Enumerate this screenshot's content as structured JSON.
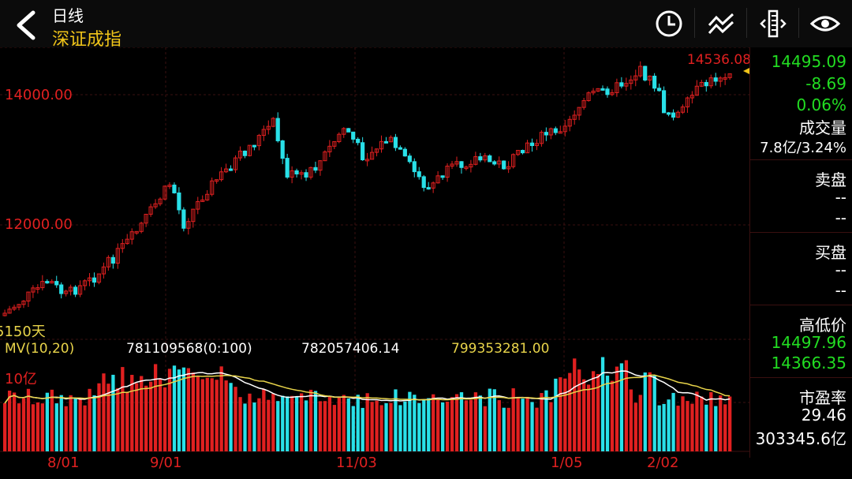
{
  "header": {
    "period": "日线",
    "index_name": "深证成指"
  },
  "colors": {
    "up": "#e02020",
    "down": "#29e0e8",
    "green": "#22dd22",
    "title": "#f0c419",
    "ma10": "#ffffff",
    "ma20": "#e8d44a"
  },
  "chart": {
    "y_labels": [
      "14000.00",
      "12000.00"
    ],
    "y_values": [
      14000,
      12000
    ],
    "high_label": "14536.08",
    "ma_label": "5150天",
    "volume_unit": "10亿",
    "mv_title": "MV(10,20)",
    "mv_values": [
      "781109568(0:100)",
      "782057406.14",
      "799353281.00"
    ],
    "x_labels": [
      "8/01",
      "9/01",
      "11/03",
      "1/05",
      "2/02"
    ]
  },
  "sidebar": {
    "price": "14495.09",
    "change": "-8.69",
    "change_pct": "0.06%",
    "volume_title": "成交量",
    "volume_value": "7.8亿/3.24%",
    "sell_title": "卖盘",
    "sell_1": "--",
    "sell_2": "--",
    "buy_title": "买盘",
    "buy_1": "--",
    "buy_2": "--",
    "hl_title": "高低价",
    "high": "14497.96",
    "low": "14366.35",
    "pe_title": "市盈率",
    "pe_value": "29.46",
    "market_cap": "303345.6亿"
  }
}
